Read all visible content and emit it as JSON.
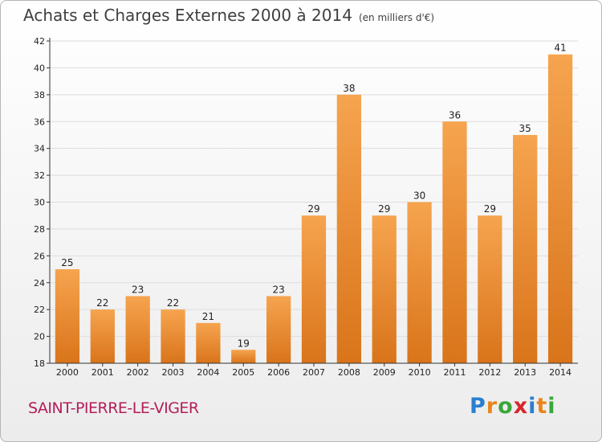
{
  "title": "Achats et Charges Externes 2000 à 2014",
  "unit": "(en milliers d'€)",
  "place": "SAINT-PIERRE-LE-VIGER",
  "logo": {
    "letters": [
      "P",
      "r",
      "o",
      "x",
      "i",
      "t",
      "i"
    ],
    "colors": [
      "#2a7fd0",
      "#e8851c",
      "#3aa63a",
      "#d9262c",
      "#2a7fd0",
      "#e8851c",
      "#3aa63a"
    ]
  },
  "colors": {
    "bar_light": "#f6a44f",
    "bar_dark": "#d9741a",
    "grid": "#dddddd",
    "axis": "#333333"
  },
  "chart_data": {
    "type": "bar",
    "categories": [
      "2000",
      "2001",
      "2002",
      "2003",
      "2004",
      "2005",
      "2006",
      "2007",
      "2008",
      "2009",
      "2010",
      "2011",
      "2012",
      "2013",
      "2014"
    ],
    "values": [
      25,
      22,
      23,
      22,
      21,
      19,
      23,
      29,
      38,
      29,
      30,
      36,
      29,
      35,
      41
    ],
    "ylim": [
      18,
      42
    ],
    "yticks": [
      18,
      20,
      22,
      24,
      26,
      28,
      30,
      32,
      34,
      36,
      38,
      40,
      42
    ],
    "grid": true,
    "title": "Achats et Charges Externes 2000 à 2014",
    "xlabel": "",
    "ylabel": ""
  }
}
